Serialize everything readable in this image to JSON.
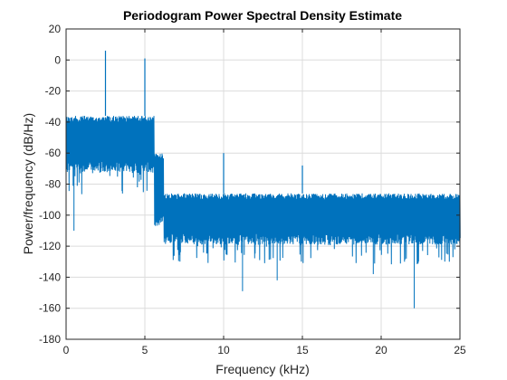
{
  "chart_data": {
    "type": "line",
    "title": "Periodogram Power Spectral Density Estimate",
    "xlabel": "Frequency (kHz)",
    "ylabel": "Power/frequency (dB/Hz)",
    "xlim": [
      0,
      25
    ],
    "ylim": [
      -180,
      20
    ],
    "xticks": [
      "0",
      "5",
      "10",
      "15",
      "20",
      "25"
    ],
    "yticks": [
      "20",
      "0",
      "-20",
      "-40",
      "-60",
      "-80",
      "-100",
      "-120",
      "-140",
      "-160",
      "-180"
    ],
    "grid": true,
    "line_color": "#0072BD",
    "series": [
      {
        "bands": [
          {
            "x_start": 0.0,
            "x_end": 5.6,
            "upper": -36,
            "lower": -65,
            "floor_min": -88
          },
          {
            "x_start": 5.6,
            "x_end": 6.2,
            "upper": -60,
            "lower": -100,
            "floor_min": -120
          },
          {
            "x_start": 6.2,
            "x_end": 25.0,
            "upper": -86,
            "lower": -112,
            "floor_min": -132
          }
        ],
        "peaks": [
          {
            "x": 2.5,
            "y": 6
          },
          {
            "x": 5.0,
            "y": 1
          },
          {
            "x": 10.0,
            "y": -60
          },
          {
            "x": 15.0,
            "y": -68
          }
        ],
        "dips": [
          {
            "x": 0.5,
            "y": -110
          },
          {
            "x": 11.2,
            "y": -149
          },
          {
            "x": 22.1,
            "y": -160
          },
          {
            "x": 13.4,
            "y": -142
          },
          {
            "x": 19.5,
            "y": -138
          }
        ]
      }
    ]
  }
}
